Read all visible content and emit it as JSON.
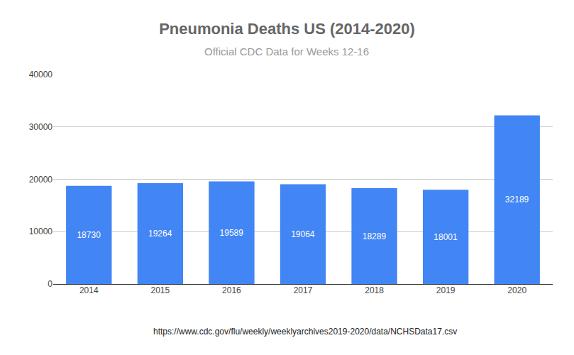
{
  "chart_data": {
    "type": "bar",
    "title": "Pneumonia Deaths US (2014-2020)",
    "subtitle": "Official CDC Data for Weeks 12-16",
    "annotations": [
      "https://www.cdc.gov/flu/weekly/weeklyarchives2019-2020/data/NCHSData17.csv"
    ],
    "categories": [
      "2014",
      "2015",
      "2016",
      "2017",
      "2018",
      "2019",
      "2020"
    ],
    "values": [
      18730,
      19264,
      19589,
      19064,
      18289,
      18001,
      32189
    ],
    "color": "#4285f4",
    "ylim": [
      0,
      40000
    ],
    "yticks": [
      0,
      10000,
      20000,
      30000,
      40000
    ],
    "grid": true,
    "data_labels": true
  }
}
